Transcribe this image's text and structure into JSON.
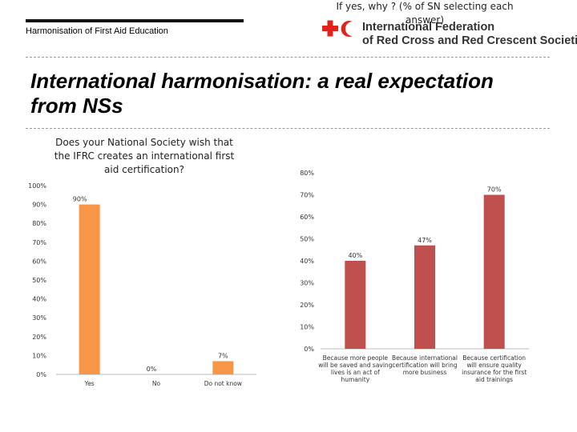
{
  "header": {
    "subtitle": "Harmonisation of First Aid Education",
    "logo": {
      "line1": "International Federation",
      "line2": "of Red Cross and Red Crescent Societies",
      "color": "#e2231a"
    }
  },
  "slide": {
    "title_line1": "International harmonisation: a real expectation",
    "title_line2": "from NSs"
  },
  "chart_data": [
    {
      "type": "bar",
      "title_lines": [
        "Does your National Society wish that",
        "the IFRC creates an international first",
        "aid certification?"
      ],
      "categories": [
        "Yes",
        "No",
        "Do not know"
      ],
      "values": [
        90,
        0,
        7
      ],
      "data_labels": [
        "90%",
        "0%",
        "7%"
      ],
      "yticks": [
        "0%",
        "10%",
        "20%",
        "30%",
        "40%",
        "50%",
        "60%",
        "70%",
        "80%",
        "90%",
        "100%"
      ],
      "ylim": [
        0,
        100
      ],
      "color": "#f79646",
      "grid": false
    },
    {
      "type": "bar",
      "title_lines": [
        "If yes, why ? (% of SN selecting each",
        "answer)"
      ],
      "categories": [
        [
          "Because more people",
          "will be saved and saving",
          "lives is an act of",
          "humanity"
        ],
        [
          "Because international",
          "certification will bring",
          "more business"
        ],
        [
          "Because certification",
          "will ensure quality",
          "insurance for the first",
          "aid trainings"
        ]
      ],
      "values": [
        40,
        47,
        70
      ],
      "data_labels": [
        "40%",
        "47%",
        "70%"
      ],
      "yticks": [
        "0%",
        "10%",
        "20%",
        "30%",
        "40%",
        "50%",
        "60%",
        "70%",
        "80%"
      ],
      "ylim": [
        0,
        80
      ],
      "color": "#c0504d",
      "grid": false
    }
  ]
}
